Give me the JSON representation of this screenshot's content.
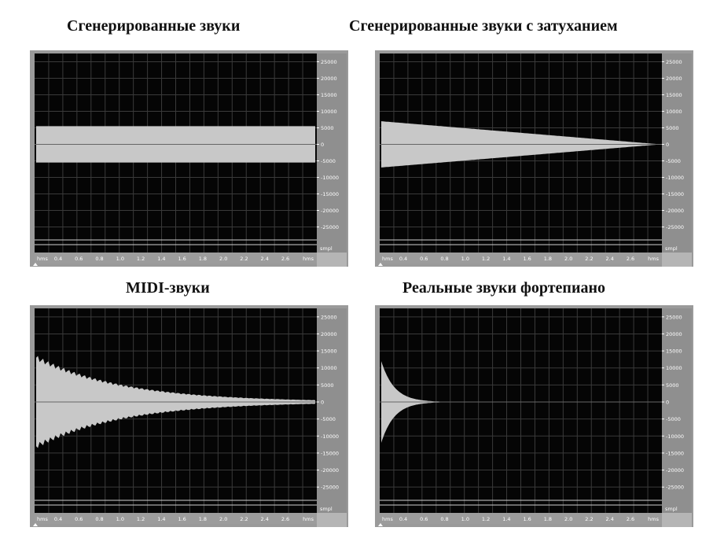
{
  "panels": [
    {
      "title": "Сгенерированные звуки",
      "envelope": "constant",
      "amplitude": 5500,
      "duration_fraction": 1.0,
      "amplitude_scale": {
        "labels": [
          "25000",
          "20000",
          "15000",
          "10000",
          "5000",
          "0",
          "-5000",
          "-10000",
          "-15000",
          "-20000",
          "-25000"
        ],
        "unit_label": "smpl"
      },
      "time_ruler": {
        "start_label": "hms",
        "labels": [
          "0.4",
          "0.6",
          "0.8",
          "1.0",
          "1.2",
          "1.4",
          "1.6",
          "1.8",
          "2.0",
          "2.2",
          "2.4",
          "2.6"
        ],
        "end_label": "hms"
      }
    },
    {
      "title": "Сгенерированные звуки с затуханием",
      "envelope": "linear",
      "amplitude": 7000,
      "duration_fraction": 1.0,
      "amplitude_scale": {
        "labels": [
          "25000",
          "20000",
          "15000",
          "10000",
          "5000",
          "0",
          "-5000",
          "-10000",
          "-15000",
          "-20000",
          "-25000"
        ],
        "unit_label": "smpl"
      },
      "time_ruler": {
        "start_label": "hms",
        "labels": [
          "0.4",
          "0.6",
          "0.8",
          "1.0",
          "1.2",
          "1.4",
          "1.6",
          "1.8",
          "2.0",
          "2.2",
          "2.4",
          "2.6"
        ],
        "end_label": "hms"
      }
    },
    {
      "title": "MIDI-звуки",
      "envelope": "exponential",
      "amplitude": 13000,
      "decay_rate": 3.2,
      "duration_fraction": 1.0,
      "amplitude_scale": {
        "labels": [
          "25000",
          "20000",
          "15000",
          "10000",
          "5000",
          "0",
          "-5000",
          "-10000",
          "-15000",
          "-20000",
          "-25000"
        ],
        "unit_label": "smpl"
      },
      "time_ruler": {
        "start_label": "hms",
        "labels": [
          "0.4",
          "0.6",
          "0.8",
          "1.0",
          "1.2",
          "1.4",
          "1.6",
          "1.8",
          "2.0",
          "2.2",
          "2.4",
          "2.6"
        ],
        "end_label": "hms"
      }
    },
    {
      "title": "Реальные звуки фортепиано",
      "envelope": "exponential",
      "amplitude": 12000,
      "decay_rate": 14,
      "duration_fraction": 0.65,
      "amplitude_scale": {
        "labels": [
          "25000",
          "20000",
          "15000",
          "10000",
          "5000",
          "0",
          "-5000",
          "-10000",
          "-15000",
          "-20000",
          "-25000"
        ],
        "unit_label": "smpl"
      },
      "time_ruler": {
        "start_label": "hms",
        "labels": [
          "0.4",
          "0.6",
          "0.8",
          "1.0",
          "1.2",
          "1.4",
          "1.6",
          "1.8",
          "2.0",
          "2.2",
          "2.4",
          "2.6"
        ],
        "end_label": "hms"
      }
    }
  ],
  "colors": {
    "page_background": "#ffffff",
    "plot_background": "#050505",
    "grid_line": "#3a3a3a",
    "waveform": "#c8c8c8",
    "center_line": "#666666",
    "scale_background": "#8f8f8f",
    "scale_text": "#ffffff",
    "frame": "#9a9a9a"
  }
}
